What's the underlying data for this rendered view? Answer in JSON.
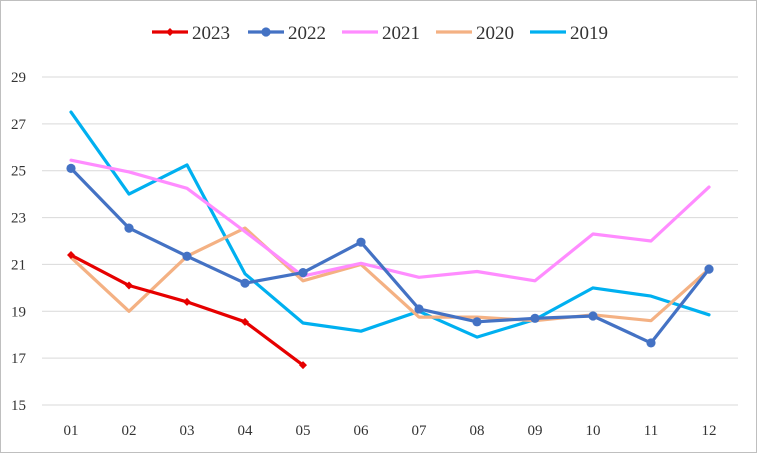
{
  "chart_data": {
    "type": "line",
    "title": "",
    "xlabel": "",
    "ylabel": "",
    "categories": [
      "01",
      "02",
      "03",
      "04",
      "05",
      "06",
      "07",
      "08",
      "09",
      "10",
      "11",
      "12"
    ],
    "ylim": [
      15,
      29
    ],
    "yticks": [
      15,
      17,
      19,
      21,
      23,
      25,
      27,
      29
    ],
    "grid": true,
    "legend_position": "top-center",
    "series": [
      {
        "name": "2023",
        "color": "#e60000",
        "marker": "diamond",
        "values": [
          21.4,
          20.1,
          19.4,
          18.55,
          16.7,
          null,
          null,
          null,
          null,
          null,
          null,
          null
        ]
      },
      {
        "name": "2022",
        "color": "#4472c4",
        "marker": "circle",
        "values": [
          25.1,
          22.55,
          21.35,
          20.2,
          20.65,
          21.95,
          19.1,
          18.55,
          18.7,
          18.8,
          17.65,
          20.8
        ]
      },
      {
        "name": "2021",
        "color": "#ff8cff",
        "marker": "none",
        "values": [
          25.45,
          24.95,
          24.25,
          22.4,
          20.5,
          21.05,
          20.45,
          20.7,
          20.3,
          22.3,
          22.0,
          24.3
        ]
      },
      {
        "name": "2020",
        "color": "#f4b183",
        "marker": "none",
        "values": [
          21.3,
          19.0,
          21.35,
          22.55,
          20.3,
          21.0,
          18.75,
          18.75,
          18.6,
          18.85,
          18.6,
          20.8
        ]
      },
      {
        "name": "2019",
        "color": "#00b0f0",
        "marker": "none",
        "values": [
          27.5,
          24.0,
          25.25,
          20.6,
          18.5,
          18.15,
          19.0,
          17.9,
          18.65,
          20.0,
          19.65,
          18.85
        ]
      }
    ]
  }
}
